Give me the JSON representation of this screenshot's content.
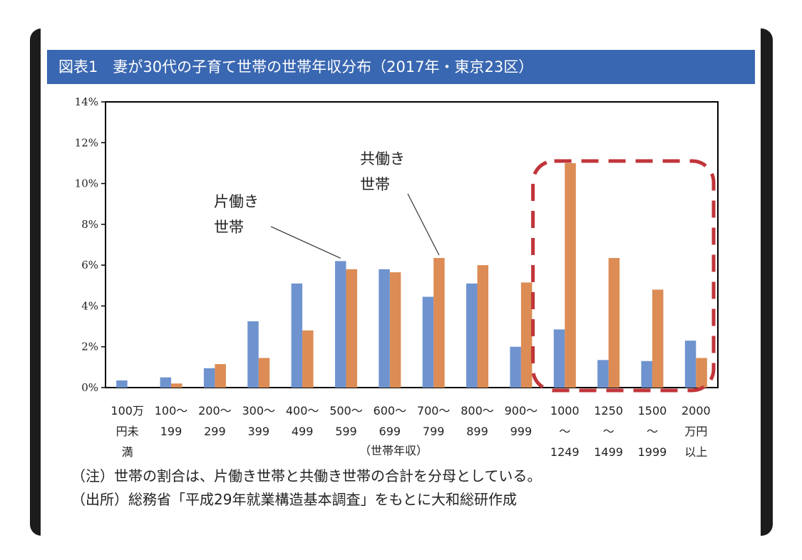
{
  "figure": {
    "title": "図表1　妻が30代の子育て世帯の世帯年収分布（2017年・東京23区）",
    "notes": [
      "（注）世帯の割合は、片働き世帯と共働き世帯の合計を分母としている。",
      "（出所）総務省「平成29年就業構造基本調査」をもとに大和総研作成"
    ]
  },
  "chart_data": {
    "type": "bar",
    "title": "図表1　妻が30代の子育て世帯の世帯年収分布（2017年・東京23区）",
    "xlabel": "（世帯年収）",
    "ylabel": "",
    "ylim": [
      0,
      14
    ],
    "yticks": [
      "0%",
      "2%",
      "4%",
      "6%",
      "8%",
      "10%",
      "12%",
      "14%"
    ],
    "categories": [
      [
        "100万",
        "円未",
        "満"
      ],
      [
        "100〜",
        "199"
      ],
      [
        "200〜",
        "299"
      ],
      [
        "300〜",
        "399"
      ],
      [
        "400〜",
        "499"
      ],
      [
        "500〜",
        "599"
      ],
      [
        "600〜",
        "699"
      ],
      [
        "700〜",
        "799"
      ],
      [
        "800〜",
        "899"
      ],
      [
        "900〜",
        "999"
      ],
      [
        "1000",
        "〜",
        "1249"
      ],
      [
        "1250",
        "〜",
        "1499"
      ],
      [
        "1500",
        "〜",
        "1999"
      ],
      [
        "2000",
        "万円",
        "以上"
      ]
    ],
    "series": [
      {
        "name": "片働き世帯",
        "color": "#6f93cf",
        "values": [
          0.35,
          0.5,
          0.95,
          3.25,
          5.1,
          6.2,
          5.8,
          4.45,
          5.1,
          2.0,
          2.85,
          1.35,
          1.3,
          2.3
        ]
      },
      {
        "name": "共働き世帯",
        "color": "#dc8c54",
        "values": [
          0.0,
          0.2,
          1.15,
          1.45,
          2.8,
          5.8,
          5.65,
          6.35,
          6.0,
          5.15,
          11.0,
          6.35,
          4.8,
          1.45
        ]
      }
    ],
    "annotations": [
      {
        "lines": [
          "片働き",
          "世帯"
        ],
        "series": 0
      },
      {
        "lines": [
          "共働き",
          "世帯"
        ],
        "series": 1
      }
    ],
    "highlight": {
      "from_category": 10,
      "to_category": 13,
      "color": "#c0353a"
    },
    "grid": false
  }
}
